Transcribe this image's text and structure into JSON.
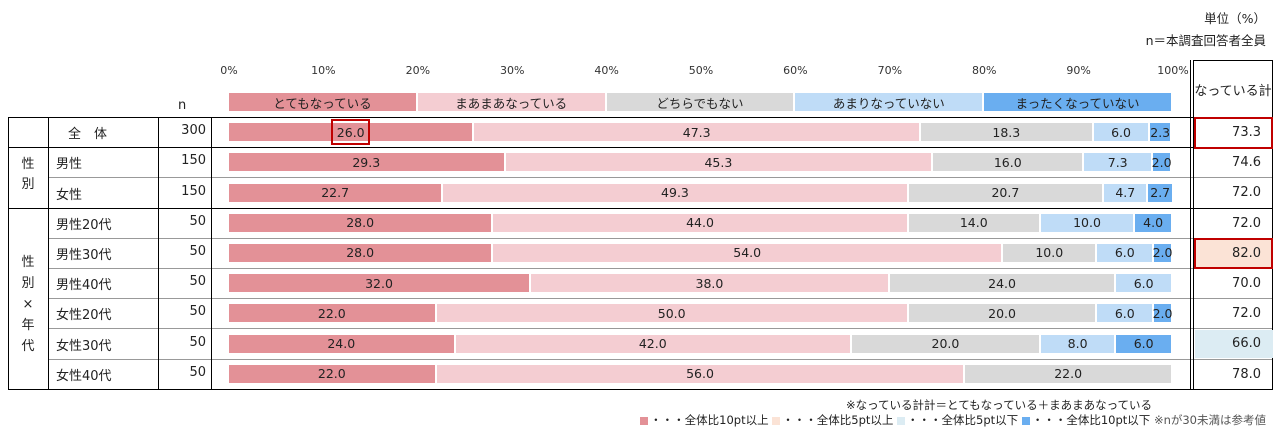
{
  "header": {
    "unit": "単位（%）",
    "base": "n＝本調査回答者全員"
  },
  "n_label": "n",
  "total_header": "なっている計",
  "chart_data": {
    "type": "bar",
    "orientation": "horizontal",
    "stacked": true,
    "percent_scale": true,
    "xlim": [
      0,
      100
    ],
    "ticks": [
      "0%",
      "10%",
      "20%",
      "30%",
      "40%",
      "50%",
      "60%",
      "70%",
      "80%",
      "90%",
      "100%"
    ],
    "series": [
      {
        "name": "とてもなっている",
        "color": "#e39197"
      },
      {
        "name": "まあまあなっている",
        "color": "#f4cdd2"
      },
      {
        "name": "どちらでもない",
        "color": "#d9d9d9"
      },
      {
        "name": "あまりなっていない",
        "color": "#bfdcf7"
      },
      {
        "name": "まったくなっていない",
        "color": "#6aaef0"
      }
    ],
    "rows": [
      {
        "group": "",
        "label": "全　体",
        "n": "300",
        "values": [
          26.0,
          47.3,
          18.3,
          6.0,
          2.3
        ],
        "labels": [
          "26.0",
          "47.3",
          "18.3",
          "6.0",
          "2.3"
        ],
        "total": "73.3",
        "total_highlight": ""
      },
      {
        "group": "性別",
        "label": "男性",
        "n": "150",
        "values": [
          29.3,
          45.3,
          16.0,
          7.3,
          2.0
        ],
        "labels": [
          "29.3",
          "45.3",
          "16.0",
          "7.3",
          "2.0"
        ],
        "total": "74.6",
        "total_highlight": ""
      },
      {
        "group": "性別",
        "label": "女性",
        "n": "150",
        "values": [
          22.7,
          49.3,
          20.7,
          4.7,
          2.7
        ],
        "labels": [
          "22.7",
          "49.3",
          "20.7",
          "4.7",
          "2.7"
        ],
        "total": "72.0",
        "total_highlight": ""
      },
      {
        "group": "性別×年代",
        "label": "男性20代",
        "n": "50",
        "values": [
          28.0,
          44.0,
          14.0,
          10.0,
          4.0
        ],
        "labels": [
          "28.0",
          "44.0",
          "14.0",
          "10.0",
          "4.0"
        ],
        "total": "72.0",
        "total_highlight": ""
      },
      {
        "group": "性別×年代",
        "label": "男性30代",
        "n": "50",
        "values": [
          28.0,
          54.0,
          10.0,
          6.0,
          2.0
        ],
        "labels": [
          "28.0",
          "54.0",
          "10.0",
          "6.0",
          "2.0"
        ],
        "total": "82.0",
        "total_highlight": "up5"
      },
      {
        "group": "性別×年代",
        "label": "男性40代",
        "n": "50",
        "values": [
          32.0,
          38.0,
          24.0,
          6.0,
          0
        ],
        "labels": [
          "32.0",
          "38.0",
          "24.0",
          "6.0",
          ""
        ],
        "total": "70.0",
        "total_highlight": ""
      },
      {
        "group": "性別×年代",
        "label": "女性20代",
        "n": "50",
        "values": [
          22.0,
          50.0,
          20.0,
          6.0,
          2.0
        ],
        "labels": [
          "22.0",
          "50.0",
          "20.0",
          "6.0",
          "2.0"
        ],
        "total": "72.0",
        "total_highlight": ""
      },
      {
        "group": "性別×年代",
        "label": "女性30代",
        "n": "50",
        "values": [
          24.0,
          42.0,
          20.0,
          8.0,
          6.0
        ],
        "labels": [
          "24.0",
          "42.0",
          "20.0",
          "8.0",
          "6.0"
        ],
        "total": "66.0",
        "total_highlight": "down5"
      },
      {
        "group": "性別×年代",
        "label": "女性40代",
        "n": "50",
        "values": [
          22.0,
          56.0,
          22.0,
          0,
          0
        ],
        "labels": [
          "22.0",
          "56.0",
          "22.0",
          "",
          ""
        ],
        "total": "78.0",
        "total_highlight": ""
      }
    ],
    "group_labels": {
      "gender": [
        "性",
        "別"
      ],
      "gender_age": [
        "性",
        "別",
        "×",
        "年",
        "代"
      ]
    }
  },
  "footer": {
    "note1": "※なっている計計＝とてもなっている＋まあまあなっている",
    "legend": [
      {
        "text": "・・・全体比10pt以上",
        "color": "#e39197"
      },
      {
        "text": "・・・全体比5pt以上",
        "color": "#fbe3d6"
      },
      {
        "text": "・・・全体比5pt以下",
        "color": "#dcecf3"
      },
      {
        "text": "・・・全体比10pt以下",
        "color": "#6aaef0"
      }
    ],
    "note2": "※nが30未満は参考値"
  },
  "colors": {
    "up5": "#fbe3d6",
    "down5": "#dcecf3",
    "highlight_border": "#c00000"
  }
}
